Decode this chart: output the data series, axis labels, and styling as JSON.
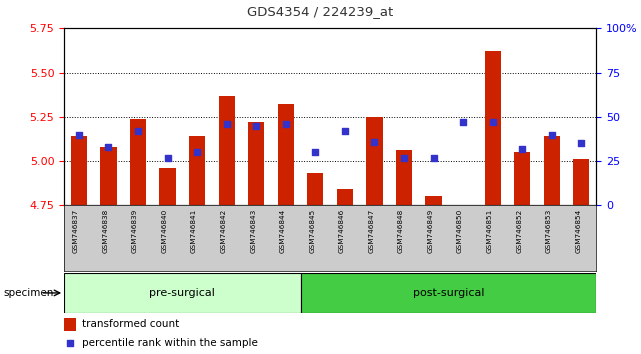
{
  "title": "GDS4354 / 224239_at",
  "samples": [
    "GSM746837",
    "GSM746838",
    "GSM746839",
    "GSM746840",
    "GSM746841",
    "GSM746842",
    "GSM746843",
    "GSM746844",
    "GSM746845",
    "GSM746846",
    "GSM746847",
    "GSM746848",
    "GSM746849",
    "GSM746850",
    "GSM746851",
    "GSM746852",
    "GSM746853",
    "GSM746854"
  ],
  "bar_values": [
    5.14,
    5.08,
    5.24,
    4.96,
    5.14,
    5.37,
    5.22,
    5.32,
    4.93,
    4.84,
    5.25,
    5.06,
    4.8,
    4.74,
    5.62,
    5.05,
    5.14,
    5.01
  ],
  "percentile_values": [
    40,
    33,
    42,
    27,
    30,
    46,
    45,
    46,
    30,
    42,
    36,
    27,
    27,
    47,
    47,
    32,
    40,
    35
  ],
  "ylim_left": [
    4.75,
    5.75
  ],
  "ylim_right": [
    0,
    100
  ],
  "yticks_left": [
    4.75,
    5.0,
    5.25,
    5.5,
    5.75
  ],
  "yticks_right": [
    0,
    25,
    50,
    75,
    100
  ],
  "ytick_labels_right": [
    "0",
    "25",
    "50",
    "75",
    "100%"
  ],
  "bar_color": "#cc2200",
  "dot_color": "#3333cc",
  "bar_bottom": 4.75,
  "pre_surgical_count": 8,
  "pre_surgical_label": "pre-surgical",
  "post_surgical_label": "post-surgical",
  "specimen_label": "specimen",
  "legend_bar_label": "transformed count",
  "legend_dot_label": "percentile rank within the sample",
  "pre_bg_color": "#ccffcc",
  "post_bg_color": "#44cc44",
  "xlabel_bg_color": "#cccccc",
  "title_color": "#333333",
  "bar_width": 0.55
}
